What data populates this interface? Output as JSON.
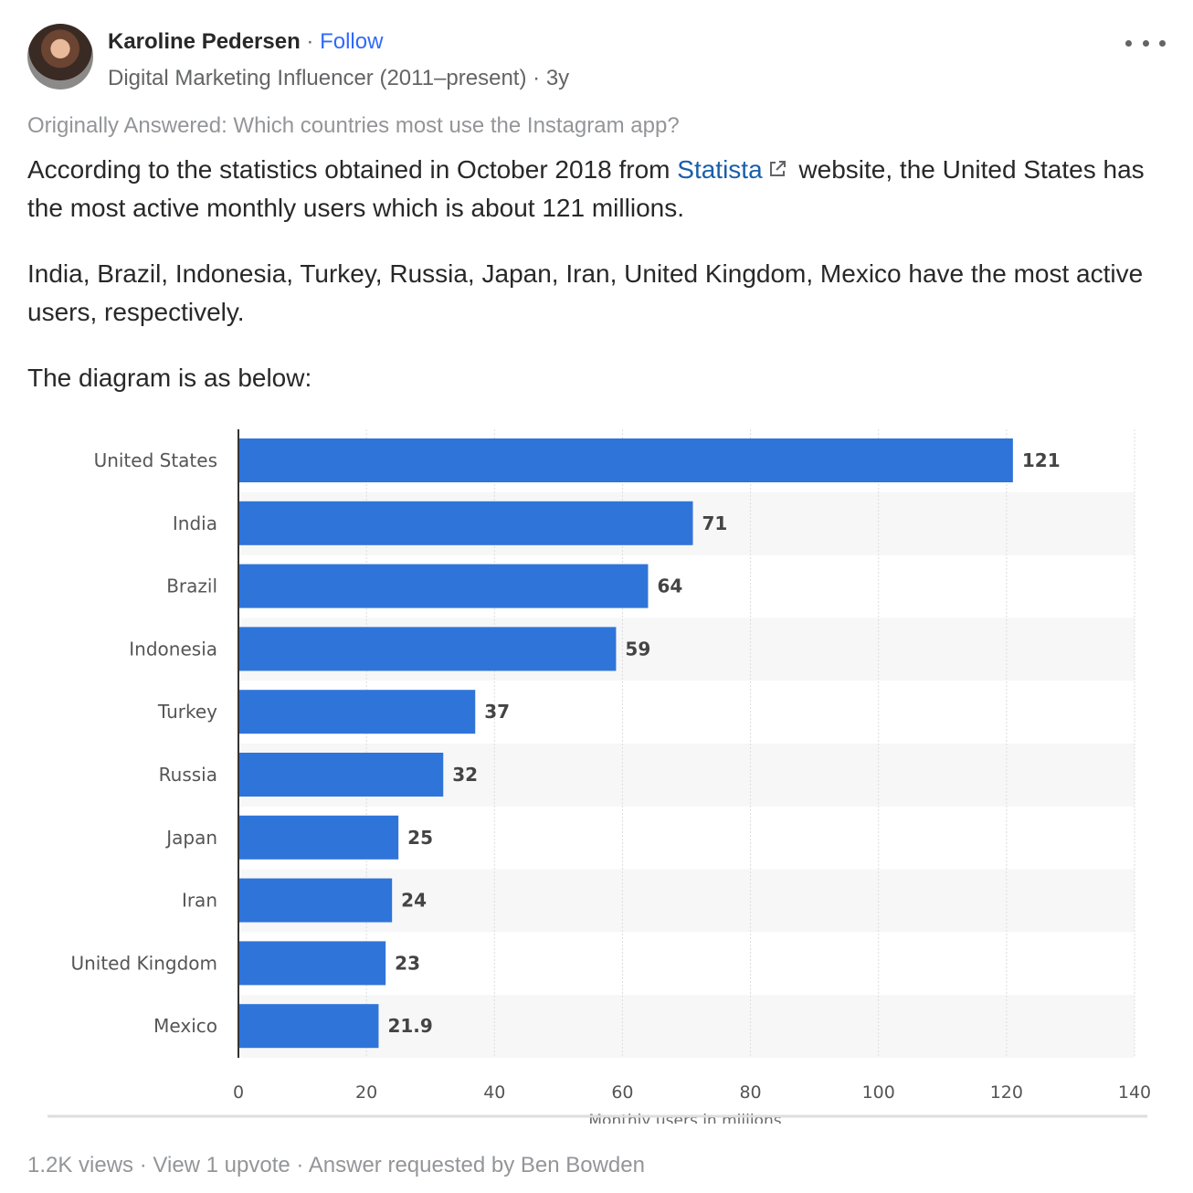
{
  "author": {
    "name": "Karoline Pedersen",
    "follow_label": "Follow",
    "credential": "Digital Marketing Influencer (2011–present)",
    "age": "3y"
  },
  "answer": {
    "originally_answered": "Originally Answered: Which countries most use the Instagram app?",
    "p1_before": "According to the statistics obtained in October 2018 from ",
    "link_label": "Statista",
    "p1_after": " website, the United States has the most active monthly users which is about 121 millions.",
    "p2": "India, Brazil, Indonesia, Turkey, Russia, Japan, Iran, United Kingdom, Mexico have the most active users, respectively.",
    "p3": "The diagram is as below:"
  },
  "chart_data": {
    "type": "bar",
    "orientation": "horizontal",
    "categories": [
      "United States",
      "India",
      "Brazil",
      "Indonesia",
      "Turkey",
      "Russia",
      "Japan",
      "Iran",
      "United Kingdom",
      "Mexico"
    ],
    "values": [
      121,
      71,
      64,
      59,
      37,
      32,
      25,
      24,
      23,
      21.9
    ],
    "value_labels": [
      "121",
      "71",
      "64",
      "59",
      "37",
      "32",
      "25",
      "24",
      "23",
      "21.9"
    ],
    "xlim": [
      0,
      140
    ],
    "xticks": [
      0,
      20,
      40,
      60,
      80,
      100,
      120,
      140
    ],
    "xlabel": "Monthly users in millions",
    "grid": true,
    "bar_color": "#2f74d9"
  },
  "footer": {
    "views": "1.2K views",
    "upvote_label": "View 1 upvote",
    "requested": "Answer requested by Ben Bowden"
  },
  "icons": {
    "more": "more-options-icon",
    "external": "external-link-icon"
  }
}
